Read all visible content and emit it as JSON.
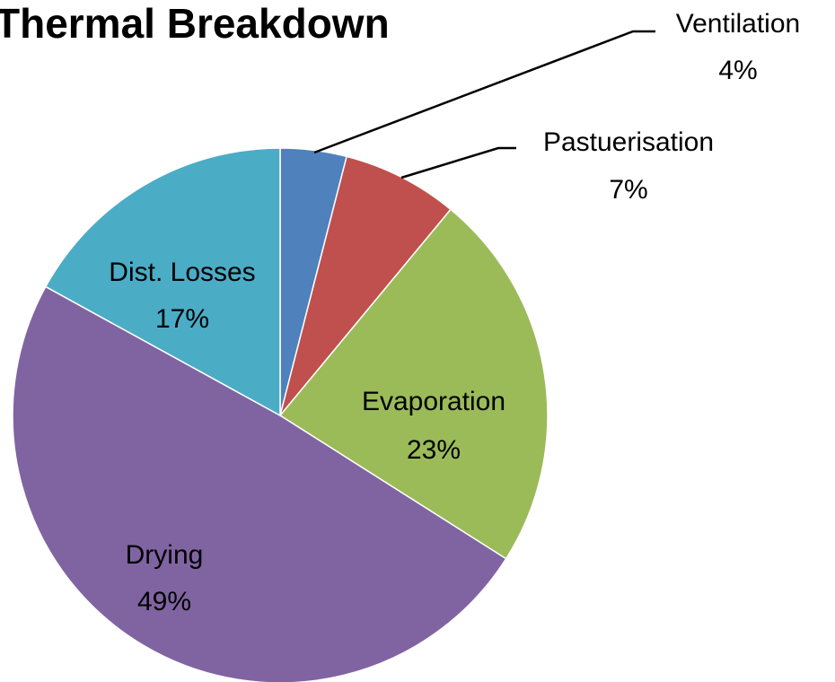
{
  "chart_data": {
    "type": "pie",
    "title": "Thermal Breakdown",
    "categories": [
      "Ventilation",
      "Pastuerisation",
      "Evaporation",
      "Drying",
      "Dist. Losses"
    ],
    "values": [
      4,
      7,
      23,
      49,
      17
    ],
    "value_labels": [
      "4%",
      "7%",
      "23%",
      "49%",
      "17%"
    ],
    "colors": [
      "#4f81bd",
      "#c0504d",
      "#9bbb59",
      "#8064a2",
      "#4bacc6"
    ]
  }
}
